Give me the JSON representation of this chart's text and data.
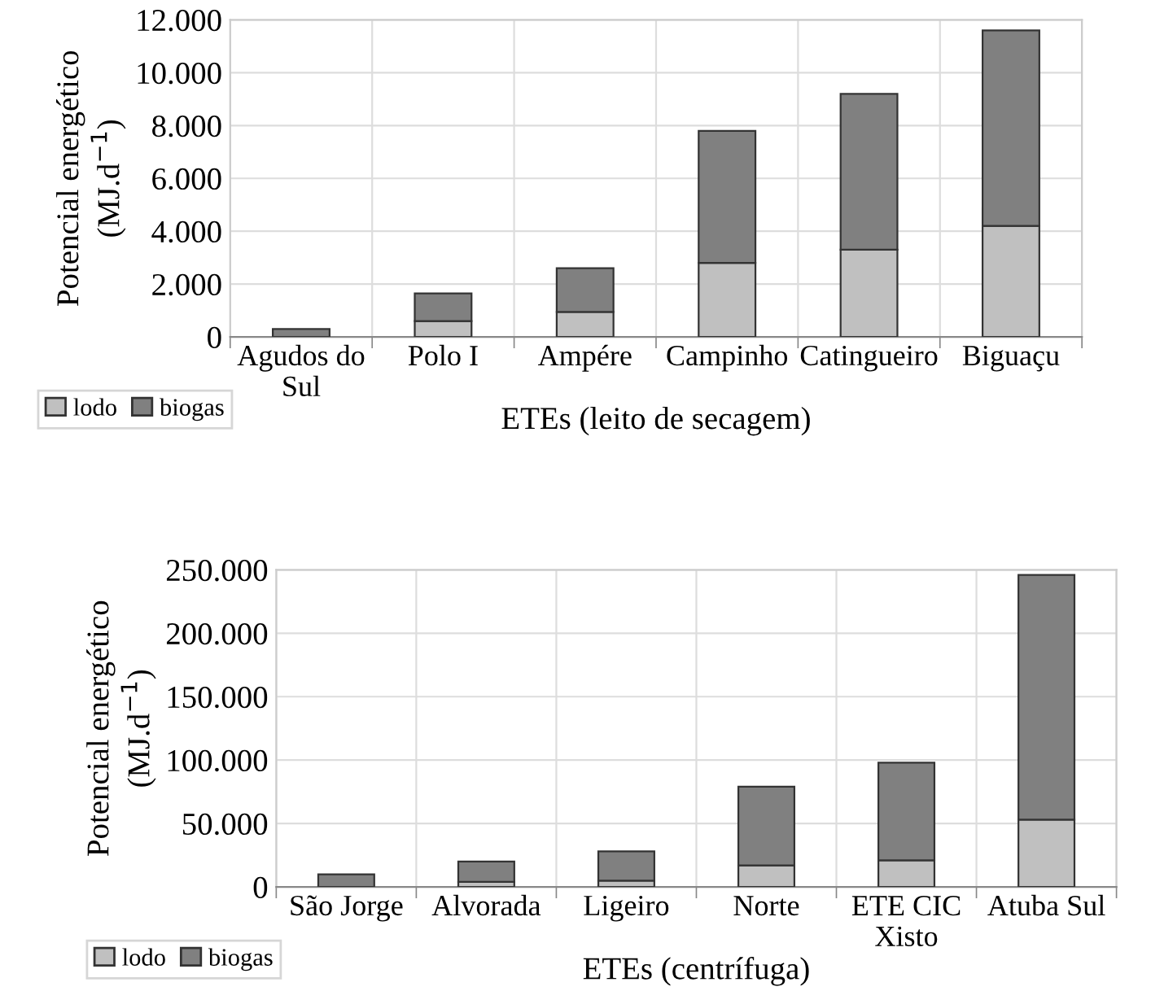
{
  "chart_data": [
    {
      "type": "bar",
      "stacked": true,
      "xlabel": "ETEs (leito de secagem)",
      "ylabel": "Potencial energético\n(MJ.d$^{−1}$)",
      "categories": [
        "Agudos do\nSul",
        "Polo I",
        "Ampére",
        "Campinho",
        "Catingueiro",
        "Biguaçu"
      ],
      "series": [
        {
          "name": "lodo",
          "color": "#c0c0c0",
          "values": [
            null,
            600,
            950,
            2800,
            3300,
            4200
          ]
        },
        {
          "name": "biogas",
          "color": "#808080",
          "values": [
            300,
            1050,
            1650,
            5000,
            5900,
            7400
          ]
        }
      ],
      "ylim": [
        0,
        12000
      ],
      "yticks": [
        {
          "value": 0,
          "label": "0"
        },
        {
          "value": 2000,
          "label": "2.000"
        },
        {
          "value": 4000,
          "label": "4.000"
        },
        {
          "value": 6000,
          "label": "6.000"
        },
        {
          "value": 8000,
          "label": "8.000"
        },
        {
          "value": 10000,
          "label": "10.000"
        },
        {
          "value": 12000,
          "label": "12.000"
        }
      ],
      "grid": true,
      "legend": "bottom left"
    },
    {
      "type": "bar",
      "stacked": true,
      "xlabel": "ETEs (centrífuga)",
      "ylabel": "Potencial energético\n(MJ.d$^{−1}$)",
      "categories": [
        "São Jorge",
        "Alvorada",
        "Ligeiro",
        "Norte",
        "ETE CIC\nXisto",
        "Atuba Sul"
      ],
      "series": [
        {
          "name": "lodo",
          "color": "#c0c0c0",
          "values": [
            null,
            4000,
            5000,
            17000,
            21000,
            53000
          ]
        },
        {
          "name": "biogas",
          "color": "#808080",
          "values": [
            10000,
            16000,
            23000,
            62000,
            77000,
            193000
          ]
        }
      ],
      "ylim": [
        0,
        250000
      ],
      "yticks": [
        {
          "value": 0,
          "label": "0"
        },
        {
          "value": 50000,
          "label": "50.000"
        },
        {
          "value": 100000,
          "label": "100.000"
        },
        {
          "value": 150000,
          "label": "150.000"
        },
        {
          "value": 200000,
          "label": "200.000"
        },
        {
          "value": 250000,
          "label": "250.000"
        }
      ],
      "grid": true,
      "legend": "bottom left"
    }
  ]
}
